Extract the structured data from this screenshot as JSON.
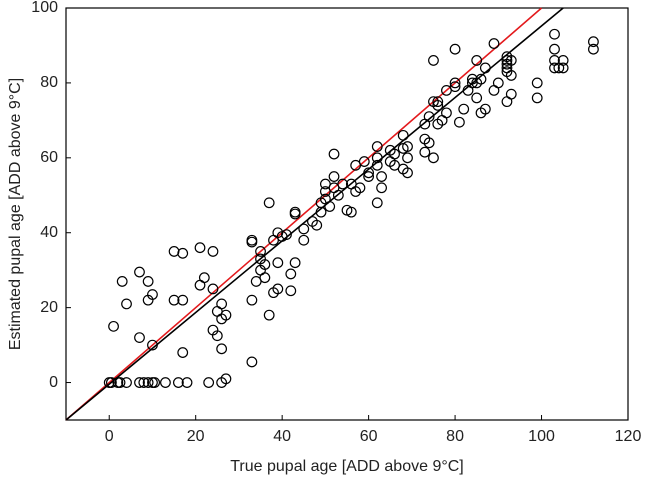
{
  "chart_data": {
    "type": "scatter",
    "xlabel": "True pupal age [ADD above 9°C]",
    "ylabel": "Estimated pupal age [ADD above 9°C]",
    "xlim": [
      -10,
      120
    ],
    "ylim": [
      -10,
      100
    ],
    "xticks": [
      0,
      20,
      40,
      60,
      80,
      100,
      120
    ],
    "yticks": [
      0,
      20,
      40,
      60,
      80,
      100
    ],
    "series": [
      {
        "color": "#000000",
        "x": [
          0,
          0.5,
          2,
          2.5,
          4,
          7,
          8,
          9,
          10,
          10.5,
          13,
          16,
          18,
          23,
          26,
          27,
          1,
          3,
          4,
          7,
          7,
          9,
          9,
          10,
          10,
          15,
          15,
          17,
          17,
          17,
          21,
          21,
          22,
          24,
          24,
          24,
          25,
          25,
          26,
          26,
          26,
          27,
          33,
          33,
          33,
          33,
          34,
          35,
          35,
          35,
          36,
          36,
          37,
          37,
          38,
          38,
          39,
          39,
          39,
          40,
          41,
          42,
          42,
          43,
          43,
          43,
          45,
          45,
          47,
          48,
          49,
          49,
          50,
          50,
          50,
          51,
          52,
          52,
          52,
          53,
          54,
          55,
          56,
          56,
          57,
          57,
          58,
          59,
          60,
          60,
          62,
          62,
          62,
          62,
          63,
          63,
          65,
          65,
          66,
          66,
          68,
          68,
          68,
          69,
          69,
          69,
          73,
          73,
          73,
          74,
          74,
          75,
          75,
          75,
          76,
          76,
          76,
          77,
          78,
          78,
          80,
          80,
          80,
          81,
          82,
          83,
          84,
          84,
          85,
          85,
          85,
          86,
          86,
          87,
          87,
          89,
          89,
          90,
          92,
          92,
          92,
          92,
          92,
          92,
          93,
          93,
          93,
          99,
          99,
          103,
          103,
          103,
          103,
          104,
          105,
          105,
          112,
          112
        ],
        "values": [
          0,
          0,
          0,
          0,
          0,
          0,
          0,
          0,
          0,
          0,
          0,
          0,
          0,
          0,
          0,
          1,
          15,
          27,
          21,
          29.5,
          12,
          27,
          22,
          23.5,
          10,
          35,
          22,
          34.5,
          22,
          8,
          26,
          36,
          28,
          35,
          25,
          14,
          12.5,
          19,
          17,
          21,
          9,
          18,
          5.5,
          22,
          37.5,
          38,
          27,
          33,
          30,
          35,
          31.5,
          28,
          18,
          48,
          38,
          24,
          40,
          32,
          25,
          39,
          39.5,
          24.5,
          29,
          32,
          45,
          45.5,
          41,
          38,
          43,
          42,
          48,
          45.5,
          51,
          53,
          49,
          47,
          55,
          61,
          52,
          50,
          53,
          46,
          45.5,
          53,
          58,
          51,
          52,
          59,
          56,
          55,
          63,
          60,
          58,
          48,
          52,
          55,
          59,
          62,
          61,
          58,
          66,
          62.5,
          57,
          63,
          60,
          56,
          69,
          61.5,
          65,
          71,
          64,
          75,
          60,
          86,
          75,
          74,
          69,
          70,
          78,
          72,
          89,
          79,
          80,
          69.5,
          73,
          78,
          80,
          81,
          80,
          76,
          86,
          72,
          81,
          73,
          84,
          90.5,
          78,
          80,
          87,
          86,
          85,
          84,
          83,
          75,
          86,
          82,
          77,
          76,
          80,
          93,
          89,
          86,
          84,
          84,
          86,
          84,
          91,
          89
        ]
      }
    ],
    "fit_lines": [
      {
        "color": "#e3191c",
        "x": [
          -10,
          100
        ],
        "values": [
          -10,
          100
        ]
      },
      {
        "color": "#000000",
        "x": [
          -10,
          105
        ],
        "values": [
          -10,
          100
        ]
      }
    ]
  }
}
